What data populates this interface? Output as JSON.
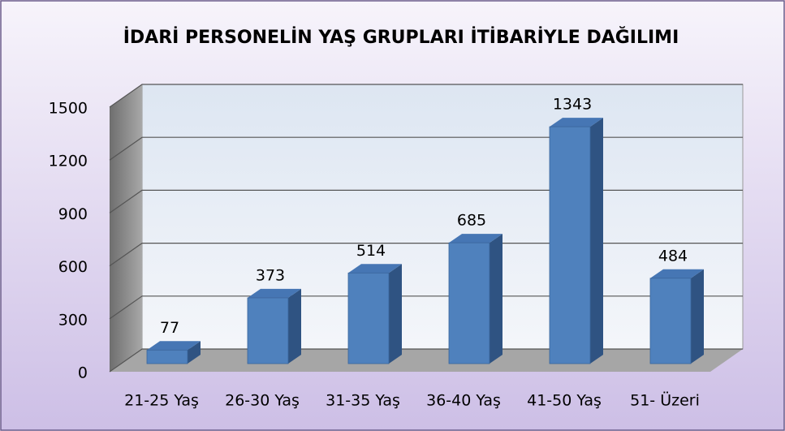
{
  "chart_data": {
    "type": "bar3d",
    "title": "İDARİ PERSONELİN YAŞ GRUPLARI İTİBARİYLE DAĞILIMI",
    "categories": [
      "21-25 Yaş",
      "26-30 Yaş",
      "31-35 Yaş",
      "36-40 Yaş",
      "41-50 Yaş",
      "51- Üzeri"
    ],
    "values": [
      77,
      373,
      514,
      685,
      1343,
      484
    ],
    "color": "#4f81bd",
    "ylim": [
      0,
      1500
    ],
    "yticks": [
      0,
      300,
      600,
      900,
      1200,
      1500
    ],
    "grid": true
  }
}
